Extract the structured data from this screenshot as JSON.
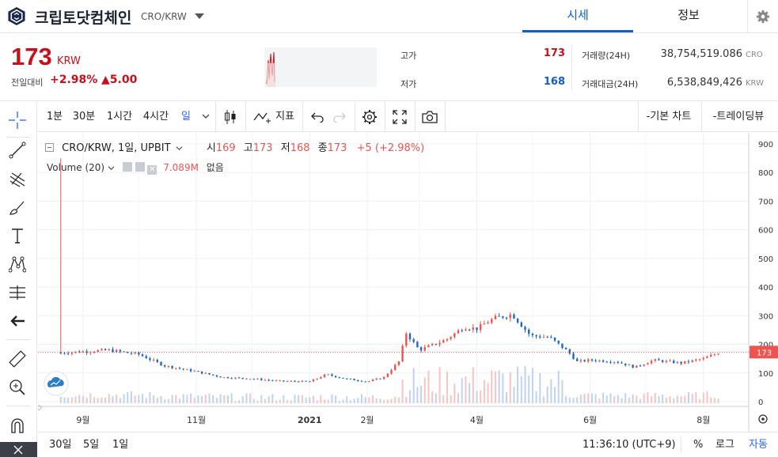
{
  "header": {
    "coin_name": "크립토닷컴체인",
    "pair": "CRO/KRW",
    "tabs": [
      {
        "label": "시세",
        "active": true
      },
      {
        "label": "정보",
        "active": false
      }
    ]
  },
  "price": {
    "current": "173",
    "unit": "KRW",
    "change_label": "전일대비",
    "change_pct": "+2.98%",
    "change_abs": "▲5.00"
  },
  "stats": {
    "high_label": "고가",
    "high": "173",
    "low_label": "저가",
    "low": "168",
    "volume_label": "거래량(24H)",
    "volume": "38,754,519.086",
    "volume_unit": "CRO",
    "amount_label": "거래대금(24H)",
    "amount": "6,538,849,426",
    "amount_unit": "KRW"
  },
  "toolbar": {
    "intervals": [
      "1분",
      "30분",
      "1시간",
      "4시간",
      "일"
    ],
    "active_interval": "일",
    "indicators_label": "지표",
    "basic_chart": "-기본 차트",
    "trading_view": "-트레이딩뷰"
  },
  "legend": {
    "symbol": "CRO/KRW, 1일, UPBIT",
    "open_label": "시",
    "open": "169",
    "high_label": "고",
    "high": "173",
    "low_label": "저",
    "low": "168",
    "close_label": "종",
    "close": "173",
    "change": "+5 (+2.98%)",
    "volume_label": "Volume (20)",
    "volume_value": "7.089M",
    "volume_ma": "없음"
  },
  "bottom": {
    "ranges": [
      "30일",
      "5일",
      "1일"
    ],
    "clock": "11:36:10 (UTC+9)",
    "pct": "%",
    "log": "로그",
    "auto": "자동"
  },
  "colors": {
    "up": "#ef5350",
    "down": "#1e66c8",
    "accent": "#115dcb",
    "price_red": "#c8101c"
  },
  "chart_data": {
    "type": "candlestick",
    "title": "CRO/KRW, 1일, UPBIT",
    "y_ticks": [
      0,
      100,
      200,
      300,
      400,
      500,
      600,
      700,
      800,
      900
    ],
    "x_ticks": [
      "9월",
      "11월",
      "2021",
      "2월",
      "4월",
      "6월",
      "8월"
    ],
    "ylim": [
      0,
      900
    ],
    "last_price_label": "173",
    "series": [
      {
        "date": "2020-08-20",
        "close": 170
      },
      {
        "date": "2020-09-01",
        "close": 175
      },
      {
        "date": "2020-09-15",
        "close": 180
      },
      {
        "date": "2020-10-01",
        "close": 165
      },
      {
        "date": "2020-10-15",
        "close": 125
      },
      {
        "date": "2020-11-01",
        "close": 105
      },
      {
        "date": "2020-11-15",
        "close": 85
      },
      {
        "date": "2020-12-01",
        "close": 80
      },
      {
        "date": "2020-12-15",
        "close": 72
      },
      {
        "date": "2021-01-01",
        "close": 70
      },
      {
        "date": "2021-01-10",
        "close": 95
      },
      {
        "date": "2021-01-20",
        "close": 80
      },
      {
        "date": "2021-02-01",
        "close": 70
      },
      {
        "date": "2021-02-10",
        "close": 85
      },
      {
        "date": "2021-02-18",
        "close": 140
      },
      {
        "date": "2021-02-22",
        "close": 240
      },
      {
        "date": "2021-03-01",
        "close": 180
      },
      {
        "date": "2021-03-15",
        "close": 215
      },
      {
        "date": "2021-03-25",
        "close": 260
      },
      {
        "date": "2021-04-01",
        "close": 255
      },
      {
        "date": "2021-04-10",
        "close": 290
      },
      {
        "date": "2021-04-20",
        "close": 305
      },
      {
        "date": "2021-04-30",
        "close": 230
      },
      {
        "date": "2021-05-10",
        "close": 225
      },
      {
        "date": "2021-05-20",
        "close": 175
      },
      {
        "date": "2021-05-25",
        "close": 140
      },
      {
        "date": "2021-06-01",
        "close": 145
      },
      {
        "date": "2021-06-15",
        "close": 140
      },
      {
        "date": "2021-06-25",
        "close": 120
      },
      {
        "date": "2021-07-05",
        "close": 145
      },
      {
        "date": "2021-07-20",
        "close": 135
      },
      {
        "date": "2021-08-01",
        "close": 150
      },
      {
        "date": "2021-08-10",
        "close": 173
      }
    ]
  }
}
